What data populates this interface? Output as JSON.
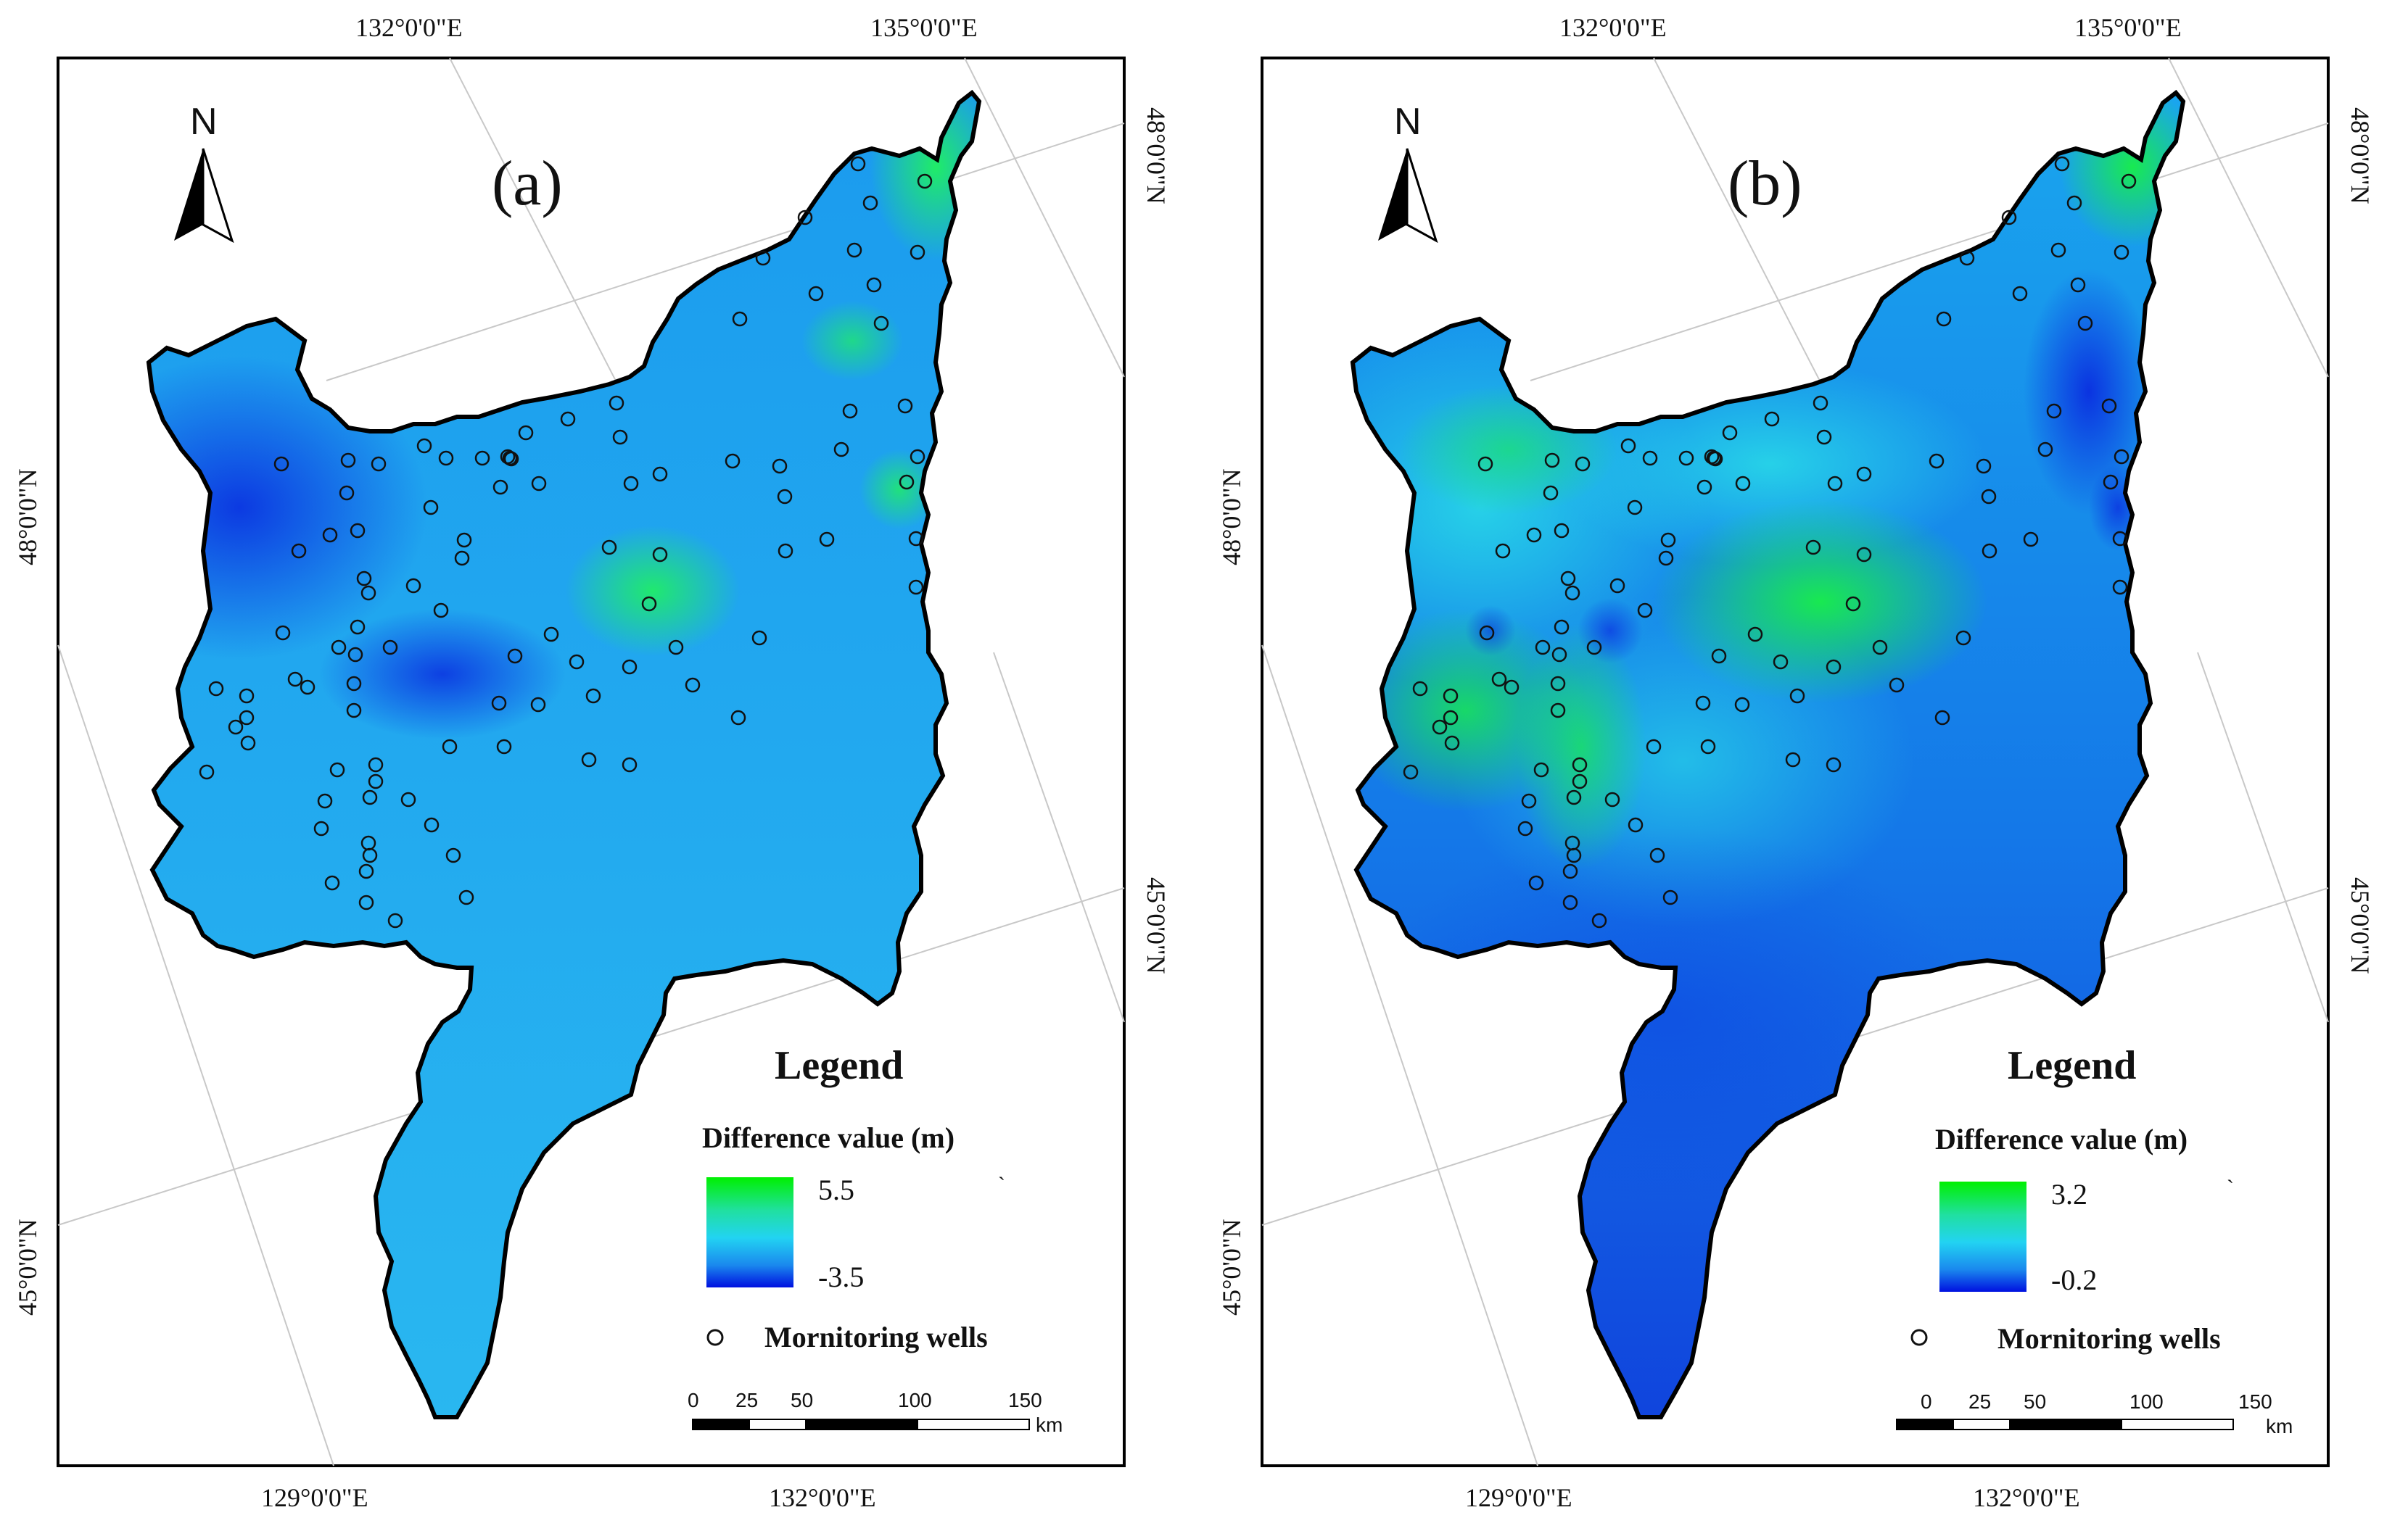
{
  "coords": {
    "top_left": "132°0'0\"E",
    "top_right": "135°0'0\"E",
    "bottom_left": "129°0'0\"E",
    "bottom_right": "132°0'0\"E",
    "right_top": "48°0'0\"N",
    "right_bottom": "45°0'0\"N",
    "left_top": "48°0'0\"N",
    "left_bottom": "45°0'0\"N"
  },
  "north_letter": "N",
  "legend_title": "Legend",
  "legend_subtitle": "Difference value (m)",
  "wells_label": "Mornitoring wells",
  "tick_mark": "`",
  "scalebar": {
    "labels": [
      "0",
      "25",
      "50",
      "100",
      "150"
    ],
    "unit": "km"
  },
  "panels": [
    {
      "id": "a",
      "label": "(a)",
      "max": "5.5",
      "min": "-3.5",
      "colors": {
        "high": "#00f000",
        "mid": "#22d3f2",
        "low": "#0010e0"
      }
    },
    {
      "id": "b",
      "label": "(b)",
      "max": "3.2",
      "min": "-0.2",
      "colors": {
        "high": "#00f000",
        "mid": "#22d3f2",
        "low": "#0010e0"
      }
    }
  ]
}
